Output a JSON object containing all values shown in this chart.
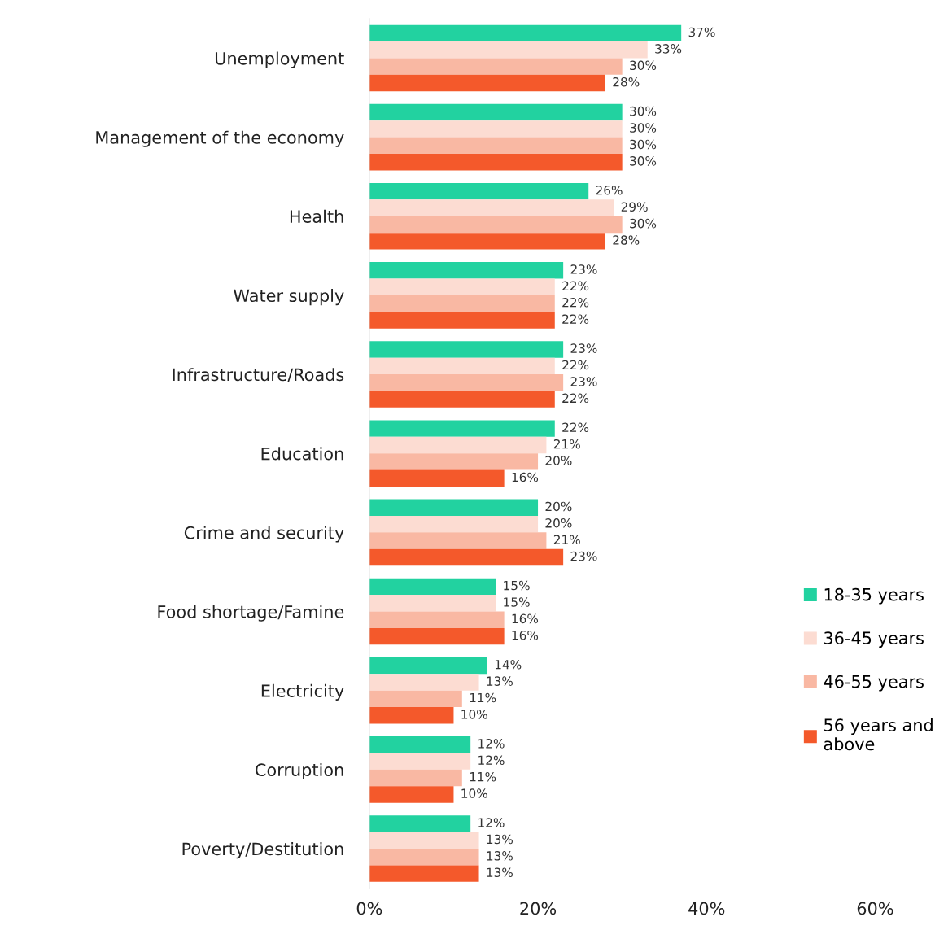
{
  "chart_data": {
    "type": "bar",
    "orientation": "horizontal",
    "categories": [
      "Unemployment",
      "Management of the economy",
      "Health",
      "Water supply",
      "Infrastructure/Roads",
      "Education",
      "Crime and security",
      "Food shortage/Famine",
      "Electricity",
      "Corruption",
      "Poverty/Destitution"
    ],
    "series": [
      {
        "name": "18-35 years",
        "color": "#22d2a0",
        "values": [
          37,
          30,
          26,
          23,
          23,
          22,
          20,
          15,
          14,
          12,
          12
        ],
        "value_labels": [
          "37%",
          "30%",
          "26%",
          "23%",
          "23%",
          "22%",
          "20%",
          "15%",
          "14%",
          "12%",
          "12%"
        ]
      },
      {
        "name": "36-45 years",
        "color": "#fcdcd2",
        "values": [
          33,
          30,
          29,
          22,
          22,
          21,
          20,
          15,
          13,
          12,
          13
        ],
        "value_labels": [
          "33%",
          "30%",
          "29%",
          "22%",
          "22%",
          "21%",
          "20%",
          "15%",
          "13%",
          "12%",
          "13%"
        ]
      },
      {
        "name": "46-55 years",
        "color": "#f9b8a3",
        "values": [
          30,
          30,
          30,
          22,
          23,
          20,
          21,
          16,
          11,
          11,
          13
        ],
        "value_labels": [
          "30%",
          "30%",
          "30%",
          "22%",
          "23%",
          "20%",
          "21%",
          "16%",
          "11%",
          "11%",
          "13%"
        ]
      },
      {
        "name": "56 years and above",
        "color": "#f4592b",
        "values": [
          28,
          30,
          28,
          22,
          22,
          16,
          23,
          16,
          10,
          10,
          13
        ],
        "value_labels": [
          "28%",
          "30%",
          "28%",
          "22%",
          "22%",
          "16%",
          "23%",
          "16%",
          "10%",
          "10%",
          "13%"
        ]
      }
    ],
    "xlim": [
      0,
      60
    ],
    "xticks": [
      {
        "value": 0,
        "label": "0%"
      },
      {
        "value": 20,
        "label": "20%"
      },
      {
        "value": 40,
        "label": "40%"
      },
      {
        "value": 60,
        "label": "60%"
      }
    ],
    "grid": false,
    "legend": "right"
  }
}
